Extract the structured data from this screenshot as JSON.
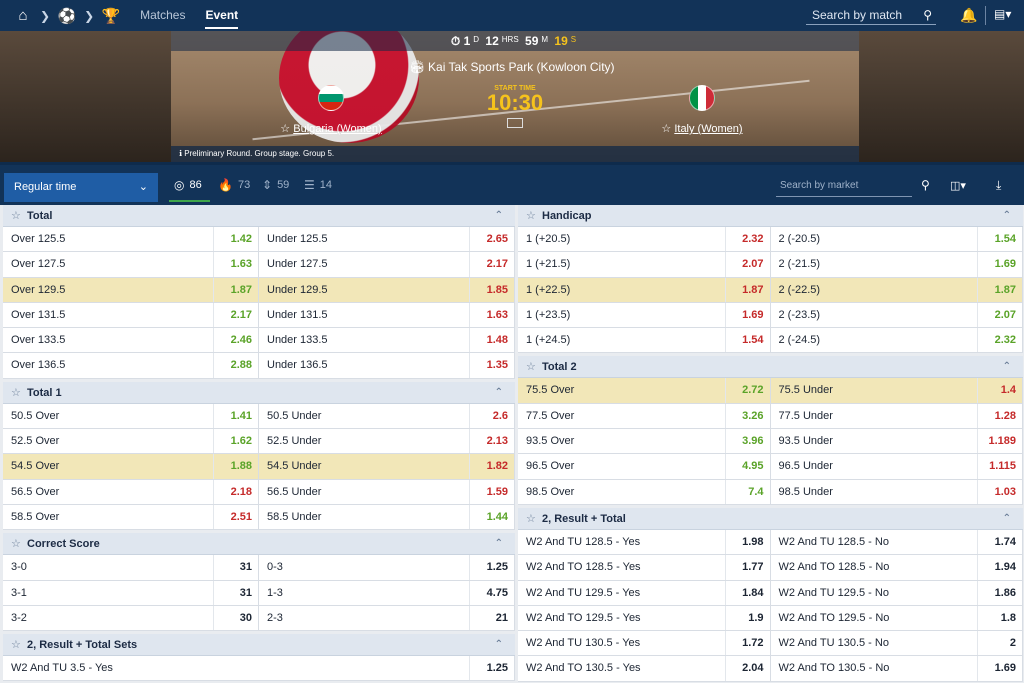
{
  "nav": {
    "matches": "Matches",
    "event": "Event",
    "search_placeholder": "Search by match"
  },
  "banner": {
    "timer": {
      "days": "1",
      "d_unit": "D",
      "hours": "12",
      "h_unit": "HRS",
      "minutes": "59",
      "m_unit": "M",
      "seconds": "19",
      "s_unit": "S"
    },
    "venue": "Kai Tak Sports Park (Kowloon City)",
    "start_label": "START TIME",
    "start_time": "10:30",
    "team1": "Bulgaria (Women)",
    "team2": "Italy (Women)",
    "stage": "Preliminary Round. Group stage. Group 5."
  },
  "filter": {
    "period": "Regular time",
    "counts": {
      "all": "86",
      "hot": "73",
      "updown": "59",
      "ladder": "14"
    },
    "market_search_placeholder": "Search by market"
  },
  "markets_left": [
    {
      "title": "Total",
      "rows": [
        {
          "a": "Over 125.5",
          "ao": "1.42",
          "at": "up",
          "b": "Under 125.5",
          "bo": "2.65",
          "bt": "down"
        },
        {
          "a": "Over 127.5",
          "ao": "1.63",
          "at": "up",
          "b": "Under 127.5",
          "bo": "2.17",
          "bt": "down"
        },
        {
          "a": "Over 129.5",
          "ao": "1.87",
          "at": "up",
          "b": "Under 129.5",
          "bo": "1.85",
          "bt": "down",
          "hl": true
        },
        {
          "a": "Over 131.5",
          "ao": "2.17",
          "at": "up",
          "b": "Under 131.5",
          "bo": "1.63",
          "bt": "down"
        },
        {
          "a": "Over 133.5",
          "ao": "2.46",
          "at": "up",
          "b": "Under 133.5",
          "bo": "1.48",
          "bt": "down"
        },
        {
          "a": "Over 136.5",
          "ao": "2.88",
          "at": "up",
          "b": "Under 136.5",
          "bo": "1.35",
          "bt": "down"
        }
      ]
    },
    {
      "title": "Total 1",
      "rows": [
        {
          "a": "50.5 Over",
          "ao": "1.41",
          "at": "up",
          "b": "50.5 Under",
          "bo": "2.6",
          "bt": "down"
        },
        {
          "a": "52.5 Over",
          "ao": "1.62",
          "at": "up",
          "b": "52.5 Under",
          "bo": "2.13",
          "bt": "down"
        },
        {
          "a": "54.5 Over",
          "ao": "1.88",
          "at": "up",
          "b": "54.5 Under",
          "bo": "1.82",
          "bt": "down",
          "hl": true
        },
        {
          "a": "56.5 Over",
          "ao": "2.18",
          "at": "down",
          "b": "56.5 Under",
          "bo": "1.59",
          "bt": "down"
        },
        {
          "a": "58.5 Over",
          "ao": "2.51",
          "at": "down",
          "b": "58.5 Under",
          "bo": "1.44",
          "bt": "up"
        }
      ]
    },
    {
      "title": "Correct Score",
      "rows": [
        {
          "a": "3-0",
          "ao": "31",
          "at": "neutral",
          "b": "0-3",
          "bo": "1.25",
          "bt": "neutral"
        },
        {
          "a": "3-1",
          "ao": "31",
          "at": "neutral",
          "b": "1-3",
          "bo": "4.75",
          "bt": "neutral"
        },
        {
          "a": "3-2",
          "ao": "30",
          "at": "neutral",
          "b": "2-3",
          "bo": "21",
          "bt": "neutral"
        }
      ]
    },
    {
      "title": "2, Result + Total Sets",
      "rows": [
        {
          "a": "W2 And TU 3.5 - Yes",
          "ao": "1.25",
          "at": "neutral",
          "single": true
        }
      ]
    }
  ],
  "markets_right": [
    {
      "title": "Handicap",
      "rows": [
        {
          "a": "1 (+20.5)",
          "ao": "2.32",
          "at": "down",
          "b": "2 (-20.5)",
          "bo": "1.54",
          "bt": "up"
        },
        {
          "a": "1 (+21.5)",
          "ao": "2.07",
          "at": "down",
          "b": "2 (-21.5)",
          "bo": "1.69",
          "bt": "up"
        },
        {
          "a": "1 (+22.5)",
          "ao": "1.87",
          "at": "down",
          "b": "2 (-22.5)",
          "bo": "1.87",
          "bt": "up",
          "hl": true
        },
        {
          "a": "1 (+23.5)",
          "ao": "1.69",
          "at": "down",
          "b": "2 (-23.5)",
          "bo": "2.07",
          "bt": "up"
        },
        {
          "a": "1 (+24.5)",
          "ao": "1.54",
          "at": "down",
          "b": "2 (-24.5)",
          "bo": "2.32",
          "bt": "up"
        }
      ]
    },
    {
      "title": "Total 2",
      "rows": [
        {
          "a": "75.5 Over",
          "ao": "2.72",
          "at": "up",
          "b": "75.5 Under",
          "bo": "1.4",
          "bt": "down",
          "hl": true
        },
        {
          "a": "77.5 Over",
          "ao": "3.26",
          "at": "up",
          "b": "77.5 Under",
          "bo": "1.28",
          "bt": "down"
        },
        {
          "a": "93.5 Over",
          "ao": "3.96",
          "at": "up",
          "b": "93.5 Under",
          "bo": "1.189",
          "bt": "down"
        },
        {
          "a": "96.5 Over",
          "ao": "4.95",
          "at": "up",
          "b": "96.5 Under",
          "bo": "1.115",
          "bt": "down"
        },
        {
          "a": "98.5 Over",
          "ao": "7.4",
          "at": "up",
          "b": "98.5 Under",
          "bo": "1.03",
          "bt": "down"
        }
      ]
    },
    {
      "title": "2, Result + Total",
      "rows": [
        {
          "a": "W2 And TU 128.5 - Yes",
          "ao": "1.98",
          "at": "neutral",
          "b": "W2 And TU 128.5 - No",
          "bo": "1.74",
          "bt": "neutral"
        },
        {
          "a": "W2 And TO 128.5 - Yes",
          "ao": "1.77",
          "at": "neutral",
          "b": "W2 And TO 128.5 - No",
          "bo": "1.94",
          "bt": "neutral"
        },
        {
          "a": "W2 And TU 129.5 - Yes",
          "ao": "1.84",
          "at": "neutral",
          "b": "W2 And TU 129.5 - No",
          "bo": "1.86",
          "bt": "neutral"
        },
        {
          "a": "W2 And TO 129.5 - Yes",
          "ao": "1.9",
          "at": "neutral",
          "b": "W2 And TO 129.5 - No",
          "bo": "1.8",
          "bt": "neutral"
        },
        {
          "a": "W2 And TU 130.5 - Yes",
          "ao": "1.72",
          "at": "neutral",
          "b": "W2 And TU 130.5 - No",
          "bo": "2",
          "bt": "neutral"
        },
        {
          "a": "W2 And TO 130.5 - Yes",
          "ao": "2.04",
          "at": "neutral",
          "b": "W2 And TO 130.5 - No",
          "bo": "1.69",
          "bt": "neutral"
        }
      ]
    }
  ]
}
